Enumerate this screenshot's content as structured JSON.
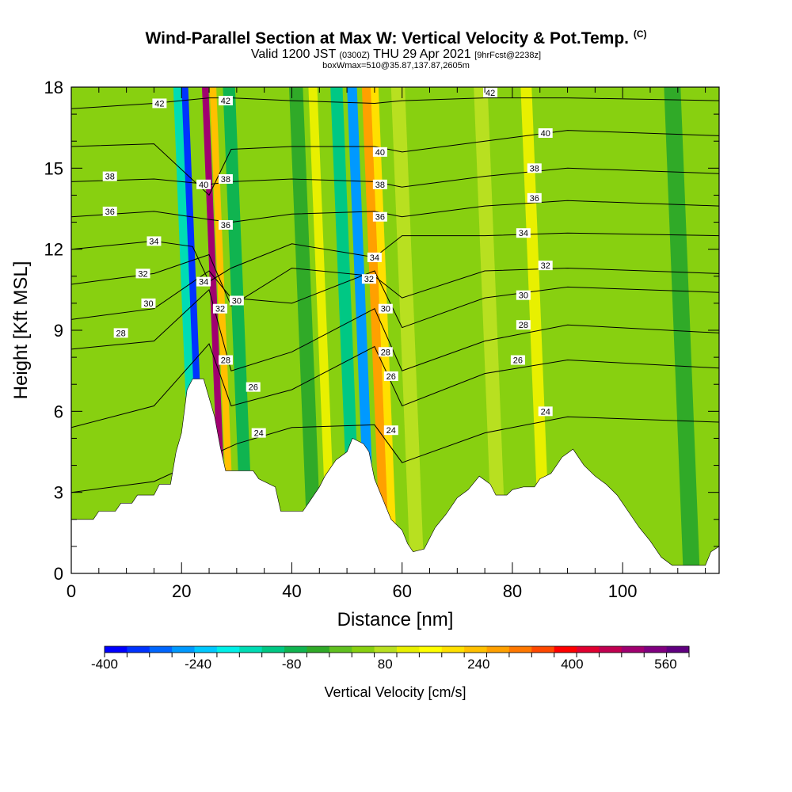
{
  "title": {
    "main": "Wind-Parallel Section at Max W: Vertical Velocity & Pot.Temp.",
    "copyright": "(C)",
    "valid_prefix": "Valid 1200 JST",
    "valid_utc": "(0300Z)",
    "valid_date": "THU 29 Apr 2021",
    "forecast": "[9hrFcst@2238z]",
    "box_info": "boxWmax=510@35.87,137.87,2605m"
  },
  "chart_data": {
    "type": "heatmap",
    "xlabel": "Distance [nm]",
    "ylabel": "Height [Kft MSL]",
    "xlim": [
      0,
      117.5
    ],
    "ylim": [
      0,
      18
    ],
    "x_ticks": [
      "0",
      "20",
      "40",
      "60",
      "80",
      "100"
    ],
    "y_ticks": [
      "0",
      "3",
      "6",
      "9",
      "12",
      "15",
      "18"
    ],
    "colorbar": {
      "label": "Vertical Velocity [cm/s]",
      "min": -400,
      "max": 600,
      "step": 40,
      "tick_labels": [
        "-400",
        "-240",
        "-80",
        "80",
        "240",
        "400",
        "560"
      ],
      "colors": [
        "#0000ff",
        "#0033ff",
        "#0066ff",
        "#0099ff",
        "#00c8ff",
        "#00f0e8",
        "#00dcb4",
        "#00c884",
        "#10b450",
        "#30aa28",
        "#60c020",
        "#88d010",
        "#b8e020",
        "#e8f000",
        "#ffff00",
        "#ffe000",
        "#ffc000",
        "#ffa000",
        "#ff7800",
        "#ff4800",
        "#ff0000",
        "#e00030",
        "#c00050",
        "#a00070",
        "#800080",
        "#600080"
      ]
    },
    "terrain_top_kft": [
      [
        0,
        2.0
      ],
      [
        4,
        2.0
      ],
      [
        5,
        2.3
      ],
      [
        8,
        2.3
      ],
      [
        9,
        2.6
      ],
      [
        11,
        2.6
      ],
      [
        12,
        2.9
      ],
      [
        15,
        2.9
      ],
      [
        16,
        3.3
      ],
      [
        18,
        3.3
      ],
      [
        19,
        4.5
      ],
      [
        20,
        5.2
      ],
      [
        21,
        6.8
      ],
      [
        22,
        7.2
      ],
      [
        24,
        7.2
      ],
      [
        25,
        6.5
      ],
      [
        26,
        5.8
      ],
      [
        27,
        4.7
      ],
      [
        28,
        3.8
      ],
      [
        33,
        3.8
      ],
      [
        34,
        3.5
      ],
      [
        37,
        3.2
      ],
      [
        38,
        2.3
      ],
      [
        42,
        2.3
      ],
      [
        43,
        2.6
      ],
      [
        45,
        3.2
      ],
      [
        46,
        3.6
      ],
      [
        48,
        4.2
      ],
      [
        50,
        4.5
      ],
      [
        51,
        5.0
      ],
      [
        53,
        4.8
      ],
      [
        54,
        4.5
      ],
      [
        55,
        3.5
      ],
      [
        57,
        2.5
      ],
      [
        58,
        2.0
      ],
      [
        60,
        1.6
      ],
      [
        61,
        1.1
      ],
      [
        62,
        0.8
      ],
      [
        64,
        0.9
      ],
      [
        66,
        1.7
      ],
      [
        68,
        2.2
      ],
      [
        70,
        2.8
      ],
      [
        72,
        3.1
      ],
      [
        74,
        3.6
      ],
      [
        76,
        3.3
      ],
      [
        77,
        2.9
      ],
      [
        79,
        2.9
      ],
      [
        80,
        3.1
      ],
      [
        82,
        3.2
      ],
      [
        84,
        3.2
      ],
      [
        85,
        3.5
      ],
      [
        87,
        3.7
      ],
      [
        89,
        4.3
      ],
      [
        91,
        4.6
      ],
      [
        93,
        4.0
      ],
      [
        95,
        3.6
      ],
      [
        97,
        3.3
      ],
      [
        99,
        2.9
      ],
      [
        101,
        2.3
      ],
      [
        103,
        1.7
      ],
      [
        105,
        1.2
      ],
      [
        107,
        0.6
      ],
      [
        109,
        0.3
      ],
      [
        112,
        0.3
      ],
      [
        115,
        0.3
      ],
      [
        116,
        0.8
      ],
      [
        117.5,
        1.0
      ]
    ],
    "vertical_velocity_bands": [
      {
        "x": 22.0,
        "w": 1.6,
        "value": -160
      },
      {
        "x": 23.5,
        "w": 1.2,
        "value": -360
      },
      {
        "x": 25.4,
        "w": 1.6,
        "value": 40
      },
      {
        "x": 27.2,
        "w": 1.2,
        "value": 520
      },
      {
        "x": 28.6,
        "w": 1.2,
        "value": 240
      },
      {
        "x": 31.0,
        "w": 2.2,
        "value": -60
      },
      {
        "x": 43.0,
        "w": 2.5,
        "value": -40
      },
      {
        "x": 46.5,
        "w": 1.6,
        "value": 140
      },
      {
        "x": 50.5,
        "w": 2.2,
        "value": -120
      },
      {
        "x": 53.5,
        "w": 1.8,
        "value": -280
      },
      {
        "x": 56.2,
        "w": 1.8,
        "value": 300
      },
      {
        "x": 57.8,
        "w": 1.4,
        "value": 200
      },
      {
        "x": 61.5,
        "w": 2.5,
        "value": 100
      },
      {
        "x": 76.5,
        "w": 2.5,
        "value": 80
      },
      {
        "x": 85.0,
        "w": 2.0,
        "value": 120
      },
      {
        "x": 111.0,
        "w": 3.0,
        "value": -40
      }
    ],
    "theta_contours": [
      {
        "level": "24",
        "heights": [
          [
            0,
            3.0
          ],
          [
            15,
            3.4
          ],
          [
            30,
            4.8
          ],
          [
            40,
            5.4
          ],
          [
            55,
            5.5
          ],
          [
            60,
            4.1
          ],
          [
            75,
            5.2
          ],
          [
            90,
            5.8
          ],
          [
            117.5,
            5.6
          ]
        ],
        "label_positions": [
          [
            34,
            5.2
          ],
          [
            58,
            5.3
          ],
          [
            86,
            6.0
          ]
        ]
      },
      {
        "level": "26",
        "heights": [
          [
            0,
            5.4
          ],
          [
            15,
            6.2
          ],
          [
            25,
            8.5
          ],
          [
            29,
            6.2
          ],
          [
            40,
            6.8
          ],
          [
            55,
            8.4
          ],
          [
            60,
            6.2
          ],
          [
            75,
            7.4
          ],
          [
            90,
            7.9
          ],
          [
            117.5,
            7.6
          ]
        ],
        "label_positions": [
          [
            33,
            6.9
          ],
          [
            58,
            7.3
          ],
          [
            81,
            7.9
          ]
        ]
      },
      {
        "level": "28",
        "heights": [
          [
            0,
            8.3
          ],
          [
            15,
            8.6
          ],
          [
            25,
            10.5
          ],
          [
            29,
            7.5
          ],
          [
            40,
            8.2
          ],
          [
            55,
            9.8
          ],
          [
            60,
            7.5
          ],
          [
            75,
            8.6
          ],
          [
            90,
            9.2
          ],
          [
            117.5,
            8.9
          ]
        ],
        "label_positions": [
          [
            9,
            8.9
          ],
          [
            28,
            7.9
          ],
          [
            57,
            8.2
          ],
          [
            82,
            9.2
          ]
        ]
      },
      {
        "level": "30",
        "heights": [
          [
            0,
            9.4
          ],
          [
            15,
            9.8
          ],
          [
            25,
            11.2
          ],
          [
            29,
            10.2
          ],
          [
            40,
            10.0
          ],
          [
            55,
            11.2
          ],
          [
            60,
            9.1
          ],
          [
            75,
            10.2
          ],
          [
            90,
            10.6
          ],
          [
            117.5,
            10.4
          ]
        ],
        "label_positions": [
          [
            14,
            10.0
          ],
          [
            30,
            10.1
          ],
          [
            57,
            9.8
          ],
          [
            82,
            10.3
          ]
        ]
      },
      {
        "level": "32",
        "heights": [
          [
            0,
            10.7
          ],
          [
            15,
            11.1
          ],
          [
            25,
            11.8
          ],
          [
            29,
            9.9
          ],
          [
            40,
            11.3
          ],
          [
            55,
            11.0
          ],
          [
            60,
            10.2
          ],
          [
            75,
            11.2
          ],
          [
            90,
            11.3
          ],
          [
            117.5,
            11.1
          ]
        ],
        "label_positions": [
          [
            13,
            11.1
          ],
          [
            27,
            9.8
          ],
          [
            54,
            10.9
          ],
          [
            86,
            11.4
          ]
        ]
      },
      {
        "level": "34",
        "heights": [
          [
            0,
            12.0
          ],
          [
            15,
            12.3
          ],
          [
            22,
            12.1
          ],
          [
            25,
            10.8
          ],
          [
            29,
            11.3
          ],
          [
            40,
            12.2
          ],
          [
            55,
            11.7
          ],
          [
            60,
            12.5
          ],
          [
            75,
            12.5
          ],
          [
            90,
            12.6
          ],
          [
            117.5,
            12.5
          ]
        ],
        "label_positions": [
          [
            15,
            12.3
          ],
          [
            24,
            10.8
          ],
          [
            55,
            11.7
          ],
          [
            82,
            12.6
          ]
        ]
      },
      {
        "level": "36",
        "heights": [
          [
            0,
            13.2
          ],
          [
            15,
            13.4
          ],
          [
            25,
            13.1
          ],
          [
            29,
            13.0
          ],
          [
            40,
            13.3
          ],
          [
            55,
            13.4
          ],
          [
            60,
            13.2
          ],
          [
            75,
            13.6
          ],
          [
            90,
            13.8
          ],
          [
            117.5,
            13.6
          ]
        ],
        "label_positions": [
          [
            7,
            13.4
          ],
          [
            28,
            12.9
          ],
          [
            56,
            13.2
          ],
          [
            84,
            13.9
          ]
        ]
      },
      {
        "level": "38",
        "heights": [
          [
            0,
            14.5
          ],
          [
            15,
            14.6
          ],
          [
            25,
            14.4
          ],
          [
            29,
            14.5
          ],
          [
            40,
            14.6
          ],
          [
            55,
            14.5
          ],
          [
            60,
            14.3
          ],
          [
            75,
            14.7
          ],
          [
            90,
            15.0
          ],
          [
            117.5,
            14.8
          ]
        ],
        "label_positions": [
          [
            7,
            14.7
          ],
          [
            28,
            14.6
          ],
          [
            56,
            14.4
          ],
          [
            84,
            15.0
          ]
        ]
      },
      {
        "level": "40",
        "heights": [
          [
            0,
            15.8
          ],
          [
            15,
            15.9
          ],
          [
            25,
            14.0
          ],
          [
            29,
            15.7
          ],
          [
            40,
            15.8
          ],
          [
            55,
            15.8
          ],
          [
            60,
            15.6
          ],
          [
            75,
            16.0
          ],
          [
            90,
            16.4
          ],
          [
            117.5,
            16.2
          ]
        ],
        "label_positions": [
          [
            24,
            14.4
          ],
          [
            56,
            15.6
          ],
          [
            86,
            16.3
          ]
        ]
      },
      {
        "level": "42",
        "heights": [
          [
            0,
            17.2
          ],
          [
            15,
            17.4
          ],
          [
            25,
            17.6
          ],
          [
            29,
            17.6
          ],
          [
            40,
            17.5
          ],
          [
            55,
            17.4
          ],
          [
            60,
            17.5
          ],
          [
            75,
            17.6
          ],
          [
            90,
            17.6
          ],
          [
            117.5,
            17.5
          ]
        ],
        "label_positions": [
          [
            16,
            17.4
          ],
          [
            28,
            17.5
          ],
          [
            76,
            17.8
          ]
        ]
      }
    ]
  }
}
